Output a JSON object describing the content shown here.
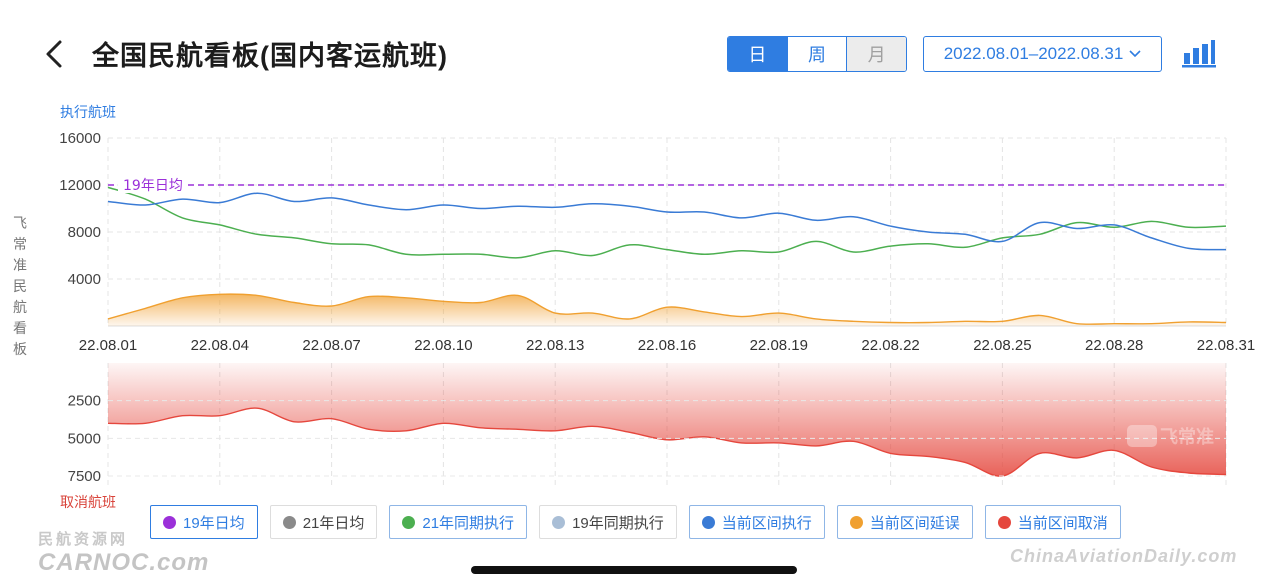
{
  "header": {
    "title": "全国民航看板(国内客运航班)",
    "period_tabs": [
      {
        "label": "日",
        "state": "active"
      },
      {
        "label": "周",
        "state": "normal"
      },
      {
        "label": "月",
        "state": "disabled"
      }
    ],
    "date_range": "2022.08.01–2022.08.31"
  },
  "colors": {
    "accent": "#2f7de1",
    "executed": "#3a7bd5",
    "same_period_21": "#4caf50",
    "delay": "#f0a030",
    "cancel": "#e5473d",
    "avg_19": "#9b30d9"
  },
  "chart_data": {
    "type": "line",
    "x": [
      "22.08.01",
      "22.08.02",
      "22.08.03",
      "22.08.04",
      "22.08.05",
      "22.08.06",
      "22.08.07",
      "22.08.08",
      "22.08.09",
      "22.08.10",
      "22.08.11",
      "22.08.12",
      "22.08.13",
      "22.08.14",
      "22.08.15",
      "22.08.16",
      "22.08.17",
      "22.08.18",
      "22.08.19",
      "22.08.20",
      "22.08.21",
      "22.08.22",
      "22.08.23",
      "22.08.24",
      "22.08.25",
      "22.08.26",
      "22.08.27",
      "22.08.28",
      "22.08.29",
      "22.08.30",
      "22.08.31"
    ],
    "x_tick_labels": [
      "22.08.01",
      "22.08.04",
      "22.08.07",
      "22.08.10",
      "22.08.13",
      "22.08.16",
      "22.08.19",
      "22.08.22",
      "22.08.25",
      "22.08.28",
      "22.08.31"
    ],
    "top_panel": {
      "ylabel": "执行航班",
      "ylim": [
        0,
        16000
      ],
      "y_ticks": [
        4000,
        8000,
        12000,
        16000
      ],
      "reference_line": {
        "label": "19年日均",
        "value": 12000
      },
      "series": [
        {
          "name": "当前区间执行",
          "values": [
            10600,
            10300,
            10800,
            10500,
            11300,
            10600,
            10900,
            10300,
            9900,
            10300,
            10000,
            10200,
            10100,
            10400,
            10200,
            9700,
            9700,
            9200,
            9600,
            9000,
            9300,
            8500,
            8000,
            7800,
            7200,
            8800,
            8300,
            8600,
            7500,
            6600,
            6500
          ]
        },
        {
          "name": "21年同期执行",
          "values": [
            11800,
            10800,
            9200,
            8600,
            7800,
            7500,
            7000,
            6900,
            6100,
            6100,
            6100,
            5800,
            6400,
            6000,
            6900,
            6500,
            6100,
            6400,
            6300,
            7200,
            6300,
            6800,
            7000,
            6700,
            7500,
            7800,
            8800,
            8400,
            8900,
            8400,
            8500
          ]
        },
        {
          "name": "当前区间延误",
          "values": [
            600,
            1500,
            2400,
            2700,
            2600,
            2000,
            1700,
            2500,
            2400,
            2100,
            2000,
            2600,
            1100,
            1100,
            600,
            1600,
            1200,
            800,
            1100,
            600,
            400,
            300,
            300,
            400,
            400,
            900,
            200,
            200,
            200,
            350,
            300
          ]
        }
      ]
    },
    "bottom_panel": {
      "ylabel": "取消航班",
      "y_ticks": [
        2500,
        5000,
        7500
      ],
      "series": [
        {
          "name": "当前区间取消",
          "values": [
            4000,
            4000,
            3500,
            3500,
            3000,
            3900,
            3700,
            4400,
            4500,
            4000,
            4300,
            4400,
            4500,
            4200,
            4600,
            5100,
            4900,
            5300,
            5300,
            5500,
            5200,
            6000,
            6200,
            6600,
            7500,
            6000,
            6300,
            5800,
            6900,
            7300,
            7400
          ]
        }
      ]
    },
    "side_label": "飞常准民航看板",
    "watermark": "飞常准"
  },
  "legend": [
    {
      "label": "19年日均",
      "color": "#9b30d9"
    },
    {
      "label": "21年日均",
      "color": "#8a8a8a"
    },
    {
      "label": "21年同期执行",
      "color": "#4caf50"
    },
    {
      "label": "19年同期执行",
      "color": "#a9bed6"
    },
    {
      "label": "当前区间执行",
      "color": "#3a7bd5"
    },
    {
      "label": "当前区间延误",
      "color": "#f0a030"
    },
    {
      "label": "当前区间取消",
      "color": "#e5473d"
    }
  ],
  "watermarks": {
    "left_top": "民航资源网",
    "left_bottom": "CARNOC.com",
    "right": "ChinaAviationDaily.com"
  },
  "icons": {
    "back": "chevron-left-icon",
    "date_dropdown": "chevron-down-icon",
    "chart_toggle": "bar-chart-icon"
  }
}
